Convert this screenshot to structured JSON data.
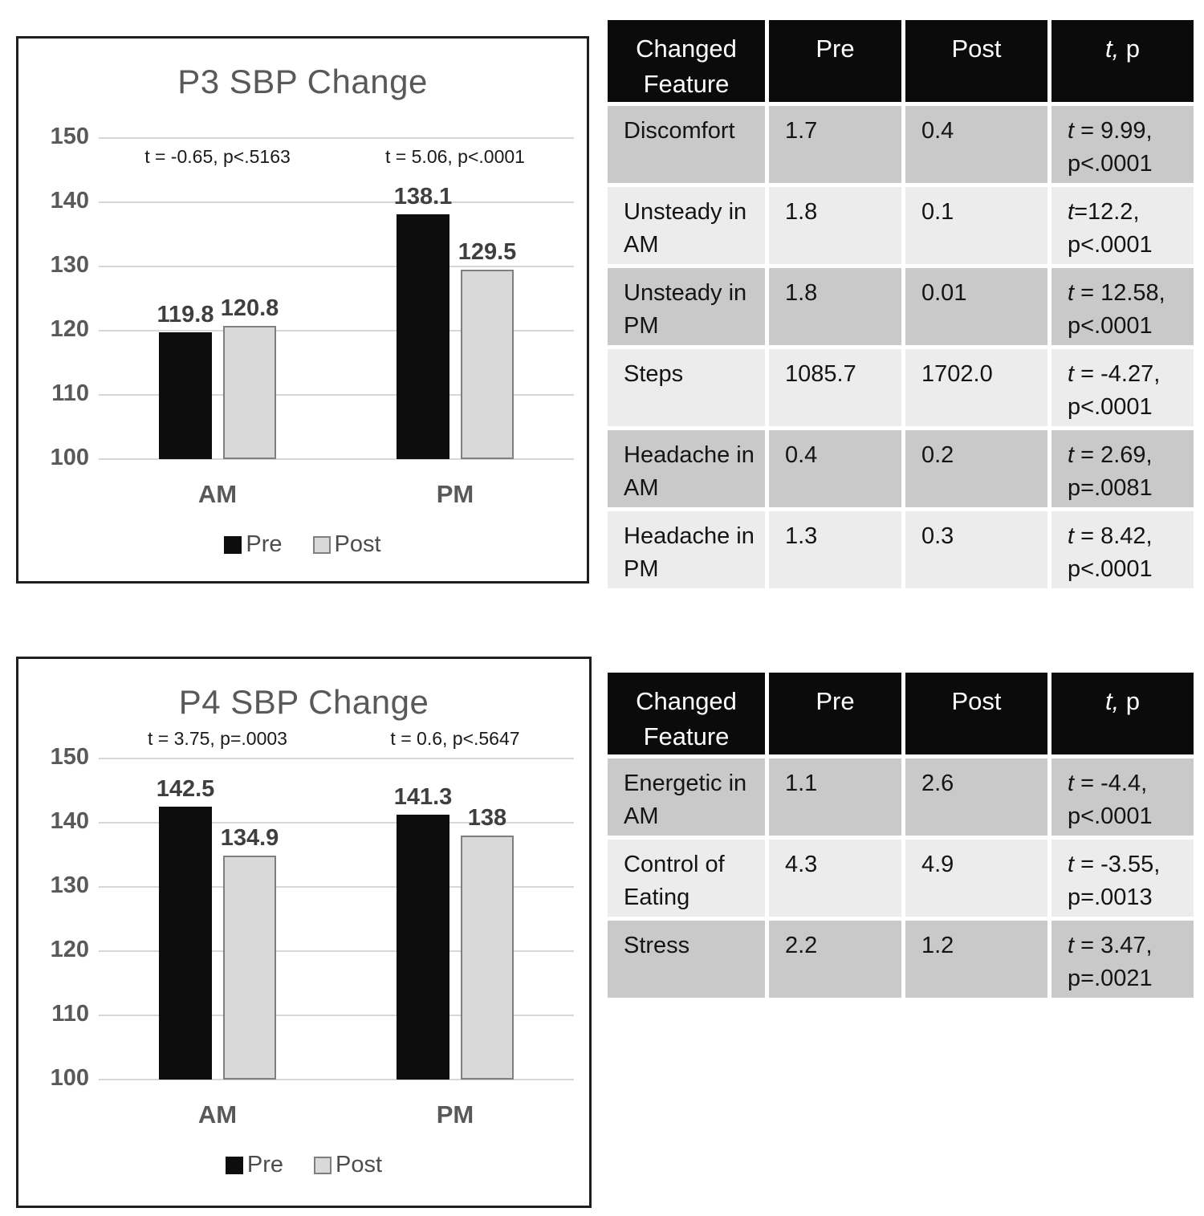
{
  "colors": {
    "pre_bar": "#0d0d0d",
    "post_bar": "#d9d9d9",
    "post_bar_border": "#7f7f7f",
    "gridline": "#d7d7d7",
    "axis_text": "#595959",
    "value_label_text": "#3f3f3f",
    "table_header_bg": "#0b0b0b",
    "table_row_dark": "#c9c9c9",
    "table_row_light": "#ececec"
  },
  "chart_data": [
    {
      "id": "p3-chart",
      "type": "bar",
      "title": "P3 SBP Change",
      "categories": [
        "AM",
        "PM"
      ],
      "series": [
        {
          "name": "Pre",
          "color": "#0d0d0d",
          "values": [
            119.8,
            138.1
          ],
          "labels": [
            "119.8",
            "138.1"
          ]
        },
        {
          "name": "Post",
          "color": "#d9d9d9",
          "border": "#7f7f7f",
          "values": [
            120.8,
            129.5
          ],
          "labels": [
            "120.8",
            "129.5"
          ]
        }
      ],
      "annotations": [
        "t = -0.65, p<.5163",
        "t = 5.06, p<.0001"
      ],
      "annotations_above": false,
      "yticks": [
        "100",
        "110",
        "120",
        "130",
        "140",
        "150"
      ],
      "ylim": [
        100,
        150
      ],
      "grid": true,
      "legend_position": "bottom"
    },
    {
      "id": "p4-chart",
      "type": "bar",
      "title": "P4 SBP Change",
      "categories": [
        "AM",
        "PM"
      ],
      "series": [
        {
          "name": "Pre",
          "color": "#0d0d0d",
          "values": [
            142.5,
            141.3
          ],
          "labels": [
            "142.5",
            "141.3"
          ]
        },
        {
          "name": "Post",
          "color": "#d9d9d9",
          "border": "#7f7f7f",
          "values": [
            134.9,
            138.0
          ],
          "labels": [
            "134.9",
            "138"
          ]
        }
      ],
      "annotations": [
        "t = 3.75, p=.0003",
        "t = 0.6, p<.5647"
      ],
      "annotations_above": true,
      "yticks": [
        "100",
        "110",
        "120",
        "130",
        "140",
        "150"
      ],
      "ylim": [
        100,
        150
      ],
      "grid": true,
      "legend_position": "bottom"
    },
    {
      "id": "p3-table",
      "type": "table",
      "columns": [
        "Changed Feature",
        "Pre",
        "Post",
        "t, p"
      ],
      "rows": [
        {
          "feature": "Discomfort",
          "pre": "1.7",
          "post": "0.4",
          "t": "t = 9.99,",
          "p": "p<.0001"
        },
        {
          "feature": "Unsteady in AM",
          "pre": "1.8",
          "post": "0.1",
          "t": "t=12.2,",
          "p": "p<.0001"
        },
        {
          "feature": "Unsteady in PM",
          "pre": "1.8",
          "post": "0.01",
          "t": "t = 12.58,",
          "p": "p<.0001"
        },
        {
          "feature": "Steps",
          "pre": "1085.7",
          "post": "1702.0",
          "t": "t = -4.27,",
          "p": "p<.0001"
        },
        {
          "feature": "Headache in AM",
          "pre": "0.4",
          "post": "0.2",
          "t": "t = 2.69,",
          "p": "p=.0081"
        },
        {
          "feature": "Headache in PM",
          "pre": "1.3",
          "post": "0.3",
          "t": "t = 8.42,",
          "p": "p<.0001"
        }
      ]
    },
    {
      "id": "p4-table",
      "type": "table",
      "columns": [
        "Changed Feature",
        "Pre",
        "Post",
        "t, p"
      ],
      "rows": [
        {
          "feature": "Energetic in AM",
          "pre": "1.1",
          "post": "2.6",
          "t": "t = -4.4,",
          "p": "p<.0001"
        },
        {
          "feature": "Control of Eating",
          "pre": "4.3",
          "post": "4.9",
          "t": "t = -3.55,",
          "p": "p=.0013"
        },
        {
          "feature": "Stress",
          "pre": "2.2",
          "post": "1.2",
          "t": "t = 3.47,",
          "p": "p=.0021"
        }
      ]
    }
  ]
}
